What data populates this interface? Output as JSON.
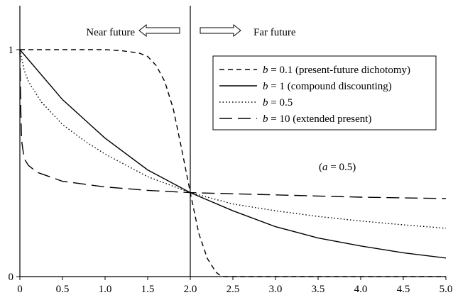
{
  "chart_data": {
    "type": "line",
    "title": "",
    "xlabel": "",
    "ylabel": "",
    "xlim": [
      0,
      5
    ],
    "ylim": [
      0,
      1
    ],
    "grid": false,
    "x_tick_labels": [
      "0",
      "0.5",
      "1.0",
      "1.5",
      "2.0",
      "2.5",
      "3.0",
      "3.5",
      "4.0",
      "4.5",
      "5.0"
    ],
    "y_tick_labels": [
      "0",
      "1"
    ],
    "legend": {
      "placement": "top-right",
      "entries": [
        {
          "text_b": "b",
          "text_rest": " = 0.1 (present-future dichotomy)",
          "style": "short-dash"
        },
        {
          "text_b": "b",
          "text_rest": " = 1 (compound discounting)",
          "style": "solid"
        },
        {
          "text_b": "b",
          "text_rest": " = 0.5",
          "style": "dotted"
        },
        {
          "text_b": "b",
          "text_rest": " = 10 (extended present)",
          "style": "long-dash"
        }
      ]
    },
    "parameter_note": {
      "italic": "a",
      "rest": " = 0.5",
      "open": "(",
      "close": ")"
    },
    "annotations": {
      "near_future": "Near future",
      "far_future": "Far future",
      "divider_x": 2.0
    },
    "series": [
      {
        "style": "short-dash",
        "x": [
          0,
          0.5,
          1.0,
          1.2,
          1.4,
          1.5,
          1.6,
          1.7,
          1.8,
          1.9,
          2.0,
          2.1,
          2.2,
          2.3,
          2.35,
          2.4,
          2.5,
          3.0,
          3.5,
          4.0,
          4.5,
          5.0
        ],
        "y": [
          1.0,
          1.0,
          1.0,
          0.995,
          0.985,
          0.97,
          0.93,
          0.86,
          0.74,
          0.56,
          0.37,
          0.19,
          0.08,
          0.02,
          0.005,
          0.0,
          0.0,
          0.0,
          0.0,
          0.0,
          0.0,
          0.0
        ]
      },
      {
        "style": "solid",
        "x": [
          0,
          0.5,
          1.0,
          1.5,
          2.0,
          2.5,
          3.0,
          3.5,
          4.0,
          4.5,
          5.0
        ],
        "y": [
          1.0,
          0.78,
          0.61,
          0.47,
          0.37,
          0.29,
          0.22,
          0.17,
          0.135,
          0.105,
          0.082
        ]
      },
      {
        "style": "dotted",
        "x": [
          0,
          0.05,
          0.1,
          0.25,
          0.5,
          0.75,
          1.0,
          1.5,
          2.0,
          2.5,
          3.0,
          3.5,
          4.0,
          4.5,
          5.0
        ],
        "y": [
          1.0,
          0.91,
          0.86,
          0.77,
          0.67,
          0.6,
          0.54,
          0.44,
          0.37,
          0.32,
          0.29,
          0.265,
          0.245,
          0.228,
          0.213
        ]
      },
      {
        "style": "long-dash",
        "x": [
          0,
          0.01,
          0.02,
          0.05,
          0.1,
          0.2,
          0.5,
          1.0,
          1.5,
          2.0,
          2.5,
          3.0,
          3.5,
          4.0,
          4.5,
          5.0
        ],
        "y": [
          1.0,
          0.75,
          0.6,
          0.52,
          0.49,
          0.46,
          0.42,
          0.395,
          0.38,
          0.37,
          0.365,
          0.36,
          0.355,
          0.35,
          0.347,
          0.344
        ]
      }
    ]
  }
}
